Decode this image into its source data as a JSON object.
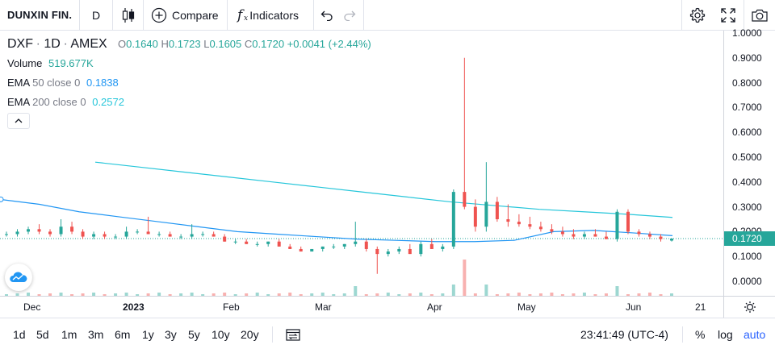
{
  "toolbar": {
    "symbol": "DUNXIN FIN.",
    "interval": "D",
    "compare_label": "Compare",
    "indicators_label": "Indicators"
  },
  "legend": {
    "ticker": "DXF",
    "interval": "1D",
    "exchange": "AMEX",
    "o_label": "O",
    "open": "0.1640",
    "h_label": "H",
    "high": "0.1723",
    "l_label": "L",
    "low": "0.1605",
    "c_label": "C",
    "close": "0.1720",
    "change": "+0.0041 (+2.44%)",
    "volume_label": "Volume",
    "volume": "519.677K",
    "ema50_label": "EMA",
    "ema50_params": "50 close 0",
    "ema50_value": "0.1838",
    "ema200_label": "EMA",
    "ema200_params": "200 close 0",
    "ema200_value": "0.2572"
  },
  "price_scale": {
    "labels": [
      "1.0000",
      "0.9000",
      "0.8000",
      "0.7000",
      "0.6000",
      "0.5000",
      "0.4000",
      "0.3000",
      "0.2000",
      "0.1000",
      "0.0000"
    ],
    "current_price": "0.1720"
  },
  "time_axis": {
    "labels": [
      "Dec",
      "2023",
      "Feb",
      "Mar",
      "Apr",
      "May",
      "Jun",
      "21"
    ]
  },
  "bottombar": {
    "ranges": [
      "1d",
      "5d",
      "1m",
      "3m",
      "6m",
      "1y",
      "3y",
      "5y",
      "10y",
      "20y"
    ],
    "clock": "23:41:49 (UTC-4)",
    "percent": "%",
    "log": "log",
    "auto": "auto"
  },
  "colors": {
    "up": "#26a69a",
    "down": "#ef5350",
    "ema50": "#2196f3",
    "ema200": "#26c6da",
    "accent": "#2962ff",
    "price_label_bg": "#26a69a"
  },
  "chart_data": {
    "type": "candlestick",
    "ylim": [
      0,
      1.0
    ],
    "x_ticks": [
      "Dec",
      "2023",
      "Feb",
      "Mar",
      "Apr",
      "May",
      "Jun",
      "21"
    ],
    "last_close": 0.172,
    "ema50_last": 0.1838,
    "ema200_last": 0.2572,
    "series": [
      {
        "name": "EMA 50 close 0",
        "values": [
          0.33,
          0.31,
          0.28,
          0.26,
          0.24,
          0.22,
          0.2,
          0.19,
          0.18,
          0.17,
          0.165,
          0.16,
          0.16,
          0.165,
          0.2,
          0.205,
          0.195,
          0.1838
        ]
      },
      {
        "name": "EMA 200 close 0",
        "values": [
          0.48,
          0.46,
          0.44,
          0.42,
          0.4,
          0.38,
          0.36,
          0.34,
          0.32,
          0.305,
          0.29,
          0.28,
          0.27,
          0.2572
        ]
      }
    ],
    "candles": [
      [
        0.19,
        0.2,
        0.18,
        0.19
      ],
      [
        0.19,
        0.21,
        0.18,
        0.2
      ],
      [
        0.2,
        0.22,
        0.19,
        0.21
      ],
      [
        0.21,
        0.23,
        0.19,
        0.2
      ],
      [
        0.2,
        0.21,
        0.18,
        0.19
      ],
      [
        0.19,
        0.25,
        0.18,
        0.22
      ],
      [
        0.22,
        0.24,
        0.19,
        0.2
      ],
      [
        0.2,
        0.21,
        0.17,
        0.18
      ],
      [
        0.18,
        0.2,
        0.17,
        0.19
      ],
      [
        0.19,
        0.2,
        0.17,
        0.18
      ],
      [
        0.18,
        0.19,
        0.17,
        0.18
      ],
      [
        0.18,
        0.22,
        0.17,
        0.2
      ],
      [
        0.2,
        0.21,
        0.19,
        0.2
      ],
      [
        0.2,
        0.26,
        0.19,
        0.19
      ],
      [
        0.19,
        0.2,
        0.18,
        0.19
      ],
      [
        0.19,
        0.2,
        0.18,
        0.18
      ],
      [
        0.18,
        0.19,
        0.17,
        0.18
      ],
      [
        0.18,
        0.23,
        0.17,
        0.19
      ],
      [
        0.19,
        0.2,
        0.18,
        0.19
      ],
      [
        0.19,
        0.2,
        0.18,
        0.18
      ],
      [
        0.18,
        0.19,
        0.16,
        0.16
      ],
      [
        0.16,
        0.17,
        0.15,
        0.16
      ],
      [
        0.16,
        0.17,
        0.15,
        0.15
      ],
      [
        0.15,
        0.16,
        0.14,
        0.15
      ],
      [
        0.15,
        0.16,
        0.14,
        0.16
      ],
      [
        0.16,
        0.17,
        0.14,
        0.14
      ],
      [
        0.14,
        0.15,
        0.13,
        0.13
      ],
      [
        0.13,
        0.14,
        0.12,
        0.12
      ],
      [
        0.12,
        0.13,
        0.12,
        0.13
      ],
      [
        0.13,
        0.14,
        0.12,
        0.14
      ],
      [
        0.14,
        0.15,
        0.13,
        0.14
      ],
      [
        0.14,
        0.15,
        0.13,
        0.15
      ],
      [
        0.15,
        0.24,
        0.14,
        0.16
      ],
      [
        0.16,
        0.17,
        0.12,
        0.13
      ],
      [
        0.13,
        0.14,
        0.03,
        0.11
      ],
      [
        0.11,
        0.13,
        0.1,
        0.12
      ],
      [
        0.12,
        0.14,
        0.11,
        0.13
      ],
      [
        0.13,
        0.15,
        0.11,
        0.11
      ],
      [
        0.11,
        0.16,
        0.1,
        0.15
      ],
      [
        0.15,
        0.17,
        0.13,
        0.13
      ],
      [
        0.13,
        0.15,
        0.12,
        0.14
      ],
      [
        0.14,
        0.37,
        0.13,
        0.36
      ],
      [
        0.36,
        0.9,
        0.29,
        0.3
      ],
      [
        0.3,
        0.33,
        0.2,
        0.22
      ],
      [
        0.22,
        0.48,
        0.2,
        0.32
      ],
      [
        0.32,
        0.34,
        0.24,
        0.25
      ],
      [
        0.25,
        0.31,
        0.22,
        0.24
      ],
      [
        0.24,
        0.27,
        0.22,
        0.23
      ],
      [
        0.23,
        0.26,
        0.21,
        0.22
      ],
      [
        0.22,
        0.24,
        0.2,
        0.21
      ],
      [
        0.21,
        0.23,
        0.19,
        0.2
      ],
      [
        0.2,
        0.22,
        0.18,
        0.19
      ],
      [
        0.19,
        0.21,
        0.17,
        0.18
      ],
      [
        0.18,
        0.2,
        0.17,
        0.19
      ],
      [
        0.19,
        0.21,
        0.18,
        0.18
      ],
      [
        0.18,
        0.2,
        0.17,
        0.17
      ],
      [
        0.17,
        0.29,
        0.16,
        0.28
      ],
      [
        0.28,
        0.29,
        0.19,
        0.2
      ],
      [
        0.2,
        0.21,
        0.18,
        0.19
      ],
      [
        0.19,
        0.2,
        0.17,
        0.18
      ],
      [
        0.18,
        0.19,
        0.16,
        0.17
      ],
      [
        0.164,
        0.1723,
        0.1605,
        0.172
      ]
    ]
  }
}
